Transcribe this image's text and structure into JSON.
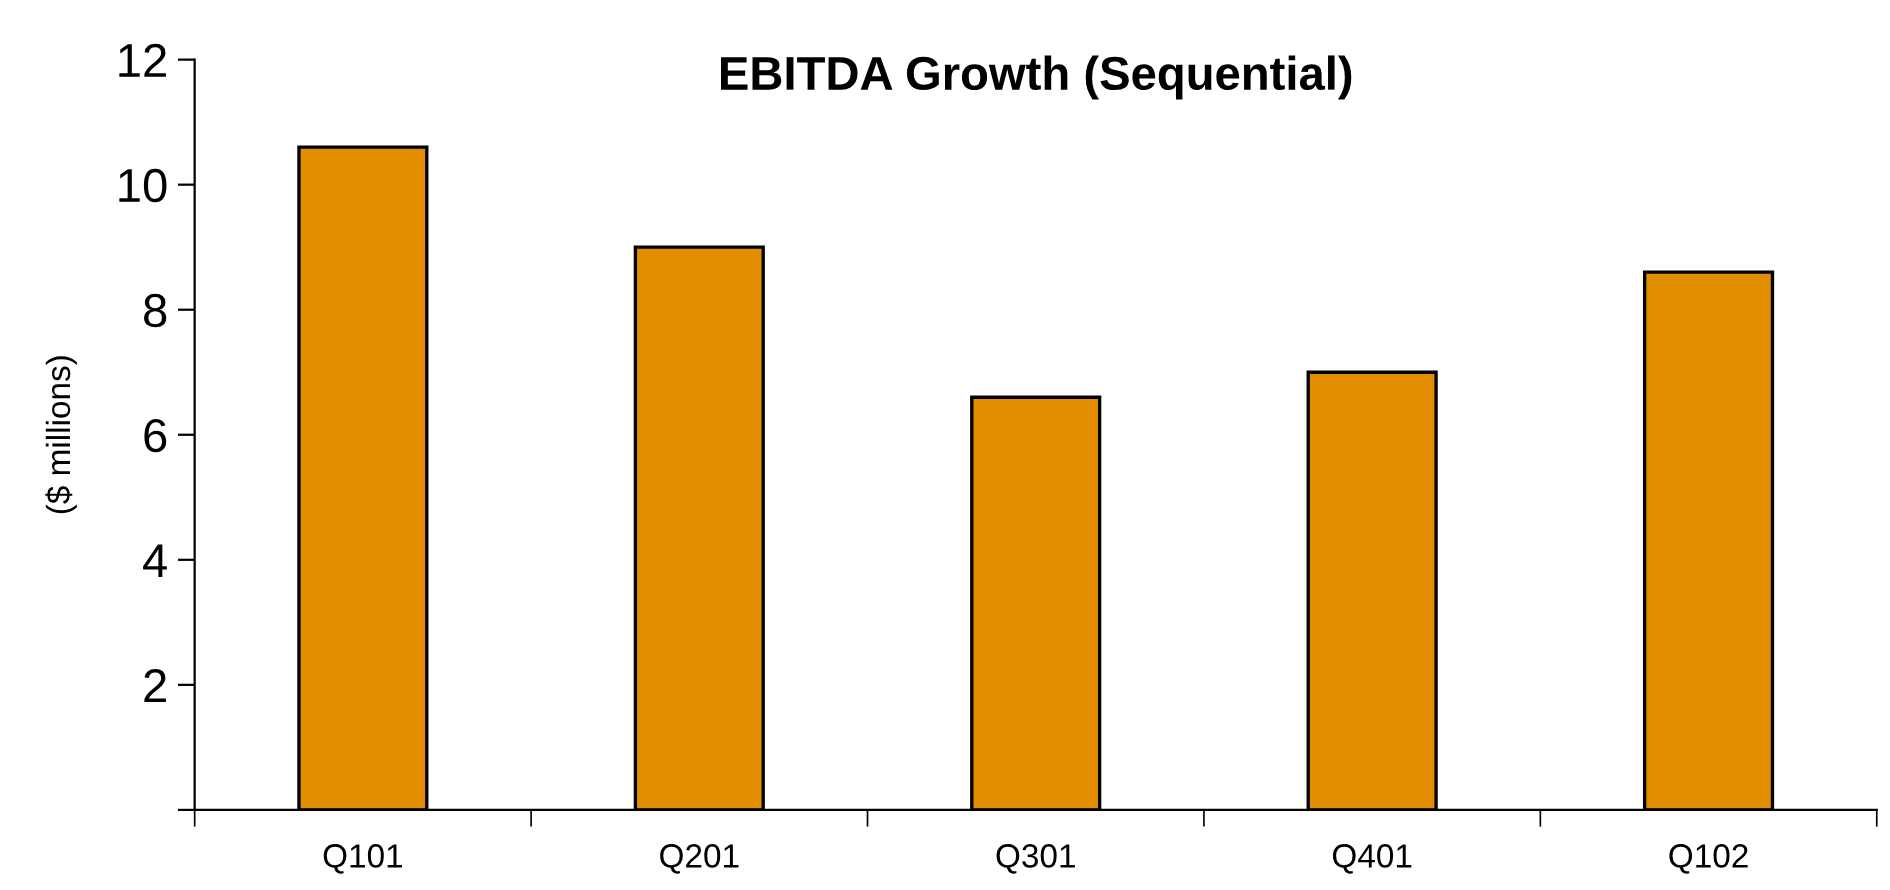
{
  "chart_data": {
    "type": "bar",
    "title": "EBITDA Growth (Sequential)",
    "ylabel": "($ millions)",
    "categories": [
      "Q101",
      "Q201",
      "Q301",
      "Q401",
      "Q102"
    ],
    "values": [
      10.6,
      9.0,
      6.6,
      7.0,
      8.6
    ],
    "color": "#e38e00",
    "ylim": [
      0,
      12
    ],
    "yticks": [
      {
        "value": 0,
        "label": null
      },
      2,
      4,
      6,
      8,
      10,
      12
    ],
    "grid": false,
    "legend": false
  }
}
